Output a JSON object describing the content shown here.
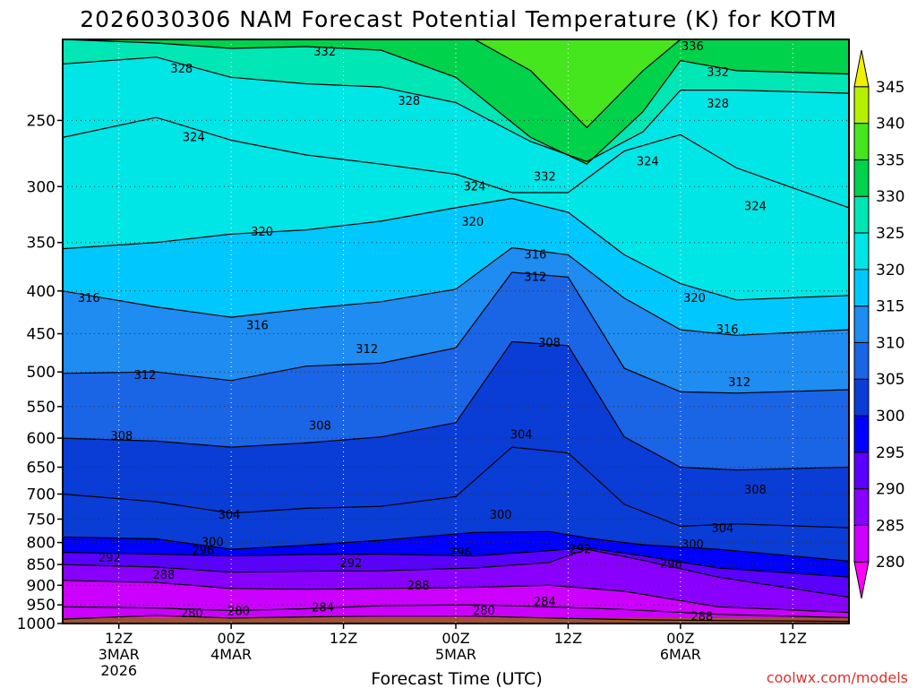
{
  "chart_data": {
    "type": "contour",
    "title": "2026030306 NAM Forecast Potential Temperature (K) for KOTM",
    "xlabel": "Forecast Time (UTC)",
    "ylabel": "",
    "y_axis": {
      "unit": "hPa",
      "inverted": true,
      "range": [
        200,
        1000
      ],
      "ticks": [
        250,
        300,
        350,
        400,
        450,
        500,
        550,
        600,
        650,
        700,
        750,
        800,
        850,
        900,
        950,
        1000
      ]
    },
    "x_axis": {
      "ticks": [
        {
          "hour": 6,
          "line1": "12Z",
          "line2": "3MAR",
          "line3": "2026"
        },
        {
          "hour": 18,
          "line1": "00Z",
          "line2": "4MAR",
          "line3": ""
        },
        {
          "hour": 30,
          "line1": "12Z",
          "line2": "",
          "line3": ""
        },
        {
          "hour": 42,
          "line1": "00Z",
          "line2": "5MAR",
          "line3": ""
        },
        {
          "hour": 54,
          "line1": "12Z",
          "line2": "",
          "line3": ""
        },
        {
          "hour": 66,
          "line1": "00Z",
          "line2": "6MAR",
          "line3": ""
        },
        {
          "hour": 78,
          "line1": "12Z",
          "line2": "",
          "line3": ""
        }
      ],
      "range": [
        0,
        84
      ]
    },
    "grid": true,
    "colorbar": {
      "placement": "right",
      "levels": [
        275,
        280,
        285,
        290,
        295,
        300,
        305,
        310,
        315,
        320,
        325,
        330,
        335,
        340,
        345,
        350
      ],
      "labels": [
        280,
        285,
        290,
        295,
        300,
        305,
        310,
        315,
        320,
        325,
        330,
        335,
        340,
        345
      ],
      "colors": [
        "#ff00ff",
        "#cc00ff",
        "#8a00ff",
        "#5a00ff",
        "#0000ff",
        "#0a3cd6",
        "#1a64e6",
        "#1e8cf0",
        "#00c8ff",
        "#00e6e6",
        "#00e6b4",
        "#00d24b",
        "#46e61e",
        "#b4f000",
        "#f0f000"
      ]
    },
    "isentropes": [
      {
        "value": 280,
        "label": true,
        "points": [
          [
            0,
            988
          ],
          [
            10,
            978
          ],
          [
            18,
            985
          ],
          [
            26,
            982
          ],
          [
            34,
            980
          ],
          [
            44,
            980
          ],
          [
            54,
            986
          ],
          [
            62,
            990
          ],
          [
            70,
            992
          ],
          [
            84,
            994
          ]
        ]
      },
      {
        "value": 284,
        "label": true,
        "points": [
          [
            0,
            955
          ],
          [
            10,
            958
          ],
          [
            18,
            965
          ],
          [
            26,
            960
          ],
          [
            34,
            952
          ],
          [
            44,
            950
          ],
          [
            52,
            955
          ],
          [
            60,
            962
          ],
          [
            70,
            975
          ],
          [
            84,
            984
          ]
        ]
      },
      {
        "value": 288,
        "label": true,
        "points": [
          [
            0,
            888
          ],
          [
            10,
            893
          ],
          [
            18,
            908
          ],
          [
            26,
            910
          ],
          [
            34,
            908
          ],
          [
            44,
            905
          ],
          [
            52,
            900
          ],
          [
            60,
            915
          ],
          [
            70,
            955
          ],
          [
            84,
            970
          ]
        ]
      },
      {
        "value": 292,
        "label": true,
        "points": [
          [
            0,
            850
          ],
          [
            10,
            856
          ],
          [
            18,
            868
          ],
          [
            26,
            866
          ],
          [
            34,
            865
          ],
          [
            44,
            858
          ],
          [
            52,
            845
          ],
          [
            56,
            815
          ],
          [
            62,
            840
          ],
          [
            70,
            880
          ],
          [
            84,
            930
          ]
        ]
      },
      {
        "value": 296,
        "label": true,
        "points": [
          [
            0,
            822
          ],
          [
            10,
            826
          ],
          [
            18,
            830
          ],
          [
            26,
            827
          ],
          [
            34,
            826
          ],
          [
            44,
            830
          ],
          [
            52,
            818
          ],
          [
            56,
            812
          ],
          [
            62,
            830
          ],
          [
            70,
            858
          ],
          [
            84,
            880
          ]
        ]
      },
      {
        "value": 300,
        "label": true,
        "points": [
          [
            0,
            788
          ],
          [
            10,
            792
          ],
          [
            18,
            815
          ],
          [
            26,
            806
          ],
          [
            34,
            795
          ],
          [
            44,
            778
          ],
          [
            52,
            776
          ],
          [
            56,
            790
          ],
          [
            62,
            805
          ],
          [
            70,
            815
          ],
          [
            84,
            842
          ]
        ]
      },
      {
        "value": 304,
        "label": true,
        "points": [
          [
            0,
            700
          ],
          [
            10,
            715
          ],
          [
            18,
            738
          ],
          [
            26,
            728
          ],
          [
            34,
            724
          ],
          [
            42,
            705
          ],
          [
            48,
            615
          ],
          [
            54,
            625
          ],
          [
            60,
            720
          ],
          [
            66,
            765
          ],
          [
            72,
            760
          ],
          [
            84,
            768
          ]
        ]
      },
      {
        "value": 308,
        "label": true,
        "points": [
          [
            0,
            600
          ],
          [
            10,
            605
          ],
          [
            18,
            615
          ],
          [
            26,
            608
          ],
          [
            34,
            598
          ],
          [
            42,
            575
          ],
          [
            48,
            460
          ],
          [
            54,
            465
          ],
          [
            60,
            598
          ],
          [
            66,
            650
          ],
          [
            72,
            655
          ],
          [
            84,
            650
          ]
        ]
      },
      {
        "value": 312,
        "label": true,
        "points": [
          [
            0,
            502
          ],
          [
            10,
            500
          ],
          [
            18,
            512
          ],
          [
            26,
            492
          ],
          [
            34,
            488
          ],
          [
            42,
            468
          ],
          [
            48,
            380
          ],
          [
            54,
            385
          ],
          [
            60,
            495
          ],
          [
            66,
            528
          ],
          [
            72,
            530
          ],
          [
            84,
            525
          ]
        ]
      },
      {
        "value": 316,
        "label": true,
        "points": [
          [
            0,
            400
          ],
          [
            10,
            418
          ],
          [
            18,
            430
          ],
          [
            26,
            420
          ],
          [
            34,
            412
          ],
          [
            42,
            398
          ],
          [
            48,
            355
          ],
          [
            54,
            362
          ],
          [
            60,
            408
          ],
          [
            66,
            445
          ],
          [
            72,
            452
          ],
          [
            84,
            445
          ]
        ]
      },
      {
        "value": 320,
        "label": true,
        "points": [
          [
            0,
            356
          ],
          [
            10,
            350
          ],
          [
            18,
            342
          ],
          [
            26,
            338
          ],
          [
            34,
            330
          ],
          [
            42,
            318
          ],
          [
            48,
            310
          ],
          [
            54,
            322
          ],
          [
            60,
            362
          ],
          [
            66,
            392
          ],
          [
            72,
            410
          ],
          [
            84,
            405
          ]
        ]
      },
      {
        "value": 324,
        "label": true,
        "points": [
          [
            0,
            262
          ],
          [
            10,
            248
          ],
          [
            18,
            264
          ],
          [
            26,
            275
          ],
          [
            34,
            282
          ],
          [
            42,
            290
          ],
          [
            48,
            305
          ],
          [
            54,
            305
          ],
          [
            60,
            272
          ],
          [
            66,
            260
          ],
          [
            72,
            285
          ],
          [
            84,
            318
          ]
        ]
      },
      {
        "value": 328,
        "label": true,
        "points": [
          [
            0,
            214
          ],
          [
            10,
            210
          ],
          [
            18,
            222
          ],
          [
            26,
            226
          ],
          [
            34,
            228
          ],
          [
            42,
            238
          ],
          [
            50,
            265
          ],
          [
            56,
            280
          ],
          [
            62,
            258
          ],
          [
            66,
            230
          ],
          [
            72,
            230
          ],
          [
            84,
            232
          ]
        ]
      },
      {
        "value": 332,
        "label": true,
        "points": [
          [
            0,
            200
          ],
          [
            10,
            202
          ],
          [
            18,
            205
          ],
          [
            26,
            204
          ],
          [
            34,
            206
          ],
          [
            42,
            222
          ],
          [
            50,
            262
          ],
          [
            56,
            282
          ],
          [
            62,
            244
          ],
          [
            66,
            212
          ],
          [
            72,
            218
          ],
          [
            84,
            220
          ]
        ]
      },
      {
        "value": 336,
        "label": true,
        "points": [
          [
            44,
            200
          ],
          [
            50,
            218
          ],
          [
            56,
            255
          ],
          [
            62,
            218
          ],
          [
            66,
            200
          ]
        ]
      }
    ],
    "contour_labels": [
      {
        "text": "332",
        "x": 28.0,
        "y": 207
      },
      {
        "text": "336",
        "x": 67.3,
        "y": 204
      },
      {
        "text": "332",
        "x": 70.0,
        "y": 219
      },
      {
        "text": "328",
        "x": 12.7,
        "y": 217
      },
      {
        "text": "328",
        "x": 37.0,
        "y": 237
      },
      {
        "text": "328",
        "x": 70.0,
        "y": 239
      },
      {
        "text": "324",
        "x": 14.0,
        "y": 262
      },
      {
        "text": "324",
        "x": 62.5,
        "y": 280
      },
      {
        "text": "332",
        "x": 51.5,
        "y": 292
      },
      {
        "text": "324",
        "x": 44.0,
        "y": 300
      },
      {
        "text": "324",
        "x": 74.0,
        "y": 317
      },
      {
        "text": "320",
        "x": 21.3,
        "y": 340
      },
      {
        "text": "320",
        "x": 43.8,
        "y": 331
      },
      {
        "text": "316",
        "x": 50.5,
        "y": 362
      },
      {
        "text": "312",
        "x": 50.5,
        "y": 385
      },
      {
        "text": "316",
        "x": 2.8,
        "y": 408
      },
      {
        "text": "320",
        "x": 67.5,
        "y": 408
      },
      {
        "text": "316",
        "x": 20.8,
        "y": 440
      },
      {
        "text": "316",
        "x": 71.0,
        "y": 445
      },
      {
        "text": "312",
        "x": 32.5,
        "y": 470
      },
      {
        "text": "308",
        "x": 52.0,
        "y": 462
      },
      {
        "text": "312",
        "x": 8.8,
        "y": 505
      },
      {
        "text": "312",
        "x": 72.3,
        "y": 515
      },
      {
        "text": "308",
        "x": 27.5,
        "y": 580
      },
      {
        "text": "304",
        "x": 49.0,
        "y": 595
      },
      {
        "text": "308",
        "x": 6.3,
        "y": 597
      },
      {
        "text": "308",
        "x": 74.0,
        "y": 692
      },
      {
        "text": "304",
        "x": 17.8,
        "y": 742
      },
      {
        "text": "300",
        "x": 46.8,
        "y": 742
      },
      {
        "text": "304",
        "x": 70.5,
        "y": 770
      },
      {
        "text": "300",
        "x": 16.0,
        "y": 800
      },
      {
        "text": "300",
        "x": 67.3,
        "y": 805
      },
      {
        "text": "296",
        "x": 15.0,
        "y": 818
      },
      {
        "text": "296",
        "x": 42.5,
        "y": 823
      },
      {
        "text": "292",
        "x": 55.3,
        "y": 816
      },
      {
        "text": "292",
        "x": 5.0,
        "y": 835
      },
      {
        "text": "292",
        "x": 30.8,
        "y": 848
      },
      {
        "text": "296",
        "x": 65.0,
        "y": 850
      },
      {
        "text": "288",
        "x": 10.8,
        "y": 875
      },
      {
        "text": "288",
        "x": 38.0,
        "y": 902
      },
      {
        "text": "284",
        "x": 51.5,
        "y": 942
      },
      {
        "text": "284",
        "x": 27.8,
        "y": 958
      },
      {
        "text": "280",
        "x": 13.8,
        "y": 973
      },
      {
        "text": "280",
        "x": 18.8,
        "y": 967
      },
      {
        "text": "280",
        "x": 45.0,
        "y": 966
      },
      {
        "text": "288",
        "x": 68.3,
        "y": 982
      }
    ],
    "ground_color": "#a0522d",
    "series": []
  },
  "credit": "coolwx.com/models"
}
